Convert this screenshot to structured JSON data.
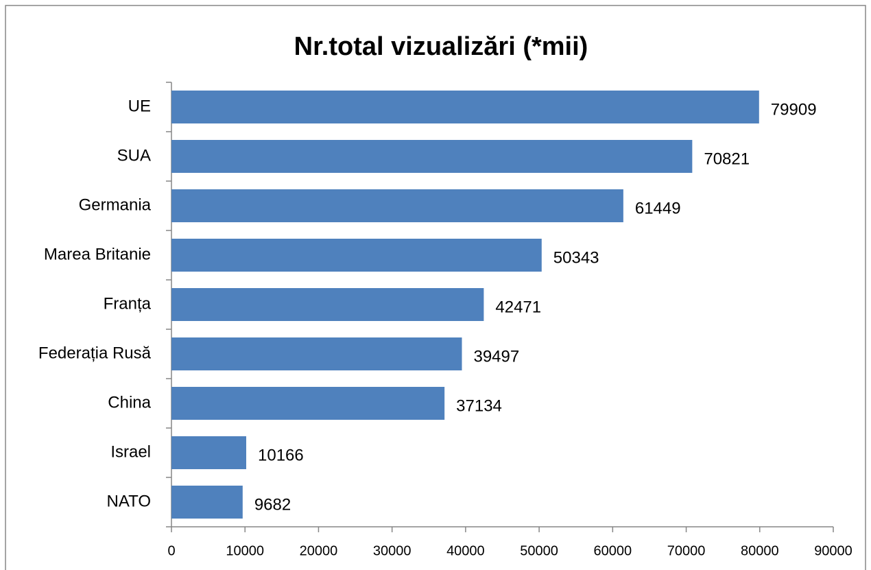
{
  "chart_data": {
    "type": "bar",
    "orientation": "horizontal",
    "title": "Nr.total vizualizări (*mii)",
    "categories": [
      "UE",
      "SUA",
      "Germania",
      "Marea Britanie",
      "Franța",
      "Federația Rusă",
      "China",
      "Israel",
      "NATO"
    ],
    "values": [
      79909,
      70821,
      61449,
      50343,
      42471,
      39497,
      37134,
      10166,
      9682
    ],
    "color": "#4f81bd",
    "xlim": [
      0,
      90000
    ],
    "xticks": [
      0,
      10000,
      20000,
      30000,
      40000,
      50000,
      60000,
      70000,
      80000,
      90000
    ],
    "grid": false
  }
}
